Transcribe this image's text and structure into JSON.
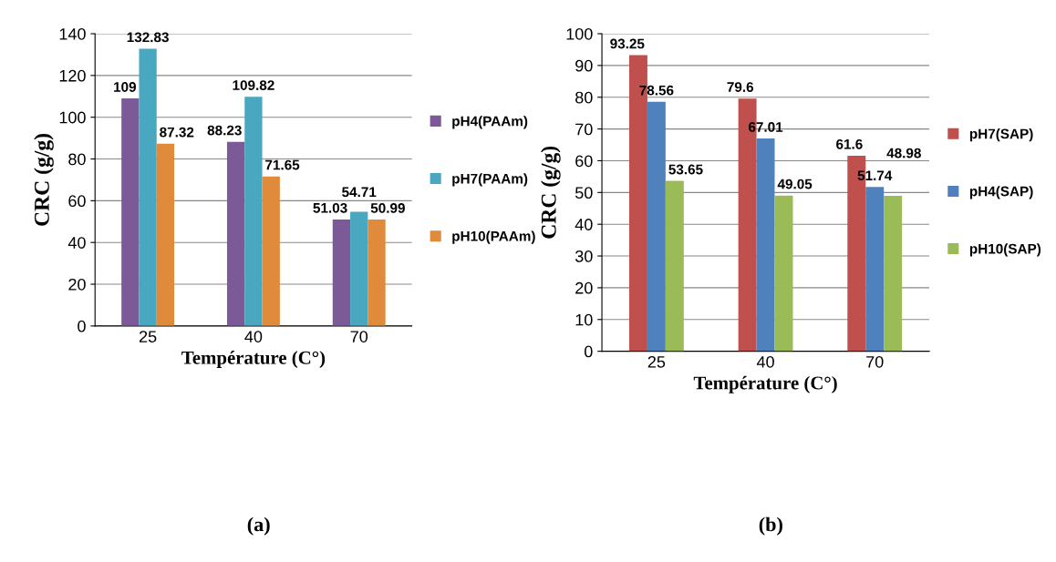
{
  "chart_data": [
    {
      "type": "bar",
      "xlabel": "Température (C°)",
      "ylabel": "CRC (g/g)",
      "categories": [
        "25",
        "40",
        "70"
      ],
      "series": [
        {
          "name": "pH4(PAAm)",
          "color": "#7b5a97",
          "values": [
            109,
            88.23,
            51.03
          ]
        },
        {
          "name": "pH7(PAAm)",
          "color": "#4aa7c0",
          "values": [
            132.83,
            109.82,
            54.71
          ]
        },
        {
          "name": "pH10(PAAm)",
          "color": "#e08a3c",
          "values": [
            87.32,
            71.65,
            50.99
          ]
        }
      ],
      "ylim": [
        0,
        140
      ],
      "yticks": [
        0,
        20,
        40,
        60,
        80,
        100,
        120,
        140
      ],
      "grid": "y",
      "legend": "right",
      "data_labels": true,
      "annotations": [
        "(a)"
      ]
    },
    {
      "type": "bar",
      "xlabel": "Température (C°)",
      "ylabel": "CRC (g/g)",
      "categories": [
        "25",
        "40",
        "70"
      ],
      "series": [
        {
          "name": "pH7(SAP)",
          "color": "#c0504d",
          "values": [
            93.25,
            79.6,
            61.6
          ]
        },
        {
          "name": "pH4(SAP)",
          "color": "#4f81bd",
          "values": [
            78.56,
            67.01,
            51.74
          ]
        },
        {
          "name": "pH10(SAP)",
          "color": "#9bbb59",
          "values": [
            53.65,
            49.05,
            48.98
          ]
        }
      ],
      "ylim": [
        0,
        100
      ],
      "yticks": [
        0,
        10,
        20,
        30,
        40,
        50,
        60,
        70,
        80,
        90,
        100
      ],
      "grid": "y",
      "legend": "right",
      "data_labels": true,
      "annotations": [
        "(b)"
      ]
    }
  ]
}
